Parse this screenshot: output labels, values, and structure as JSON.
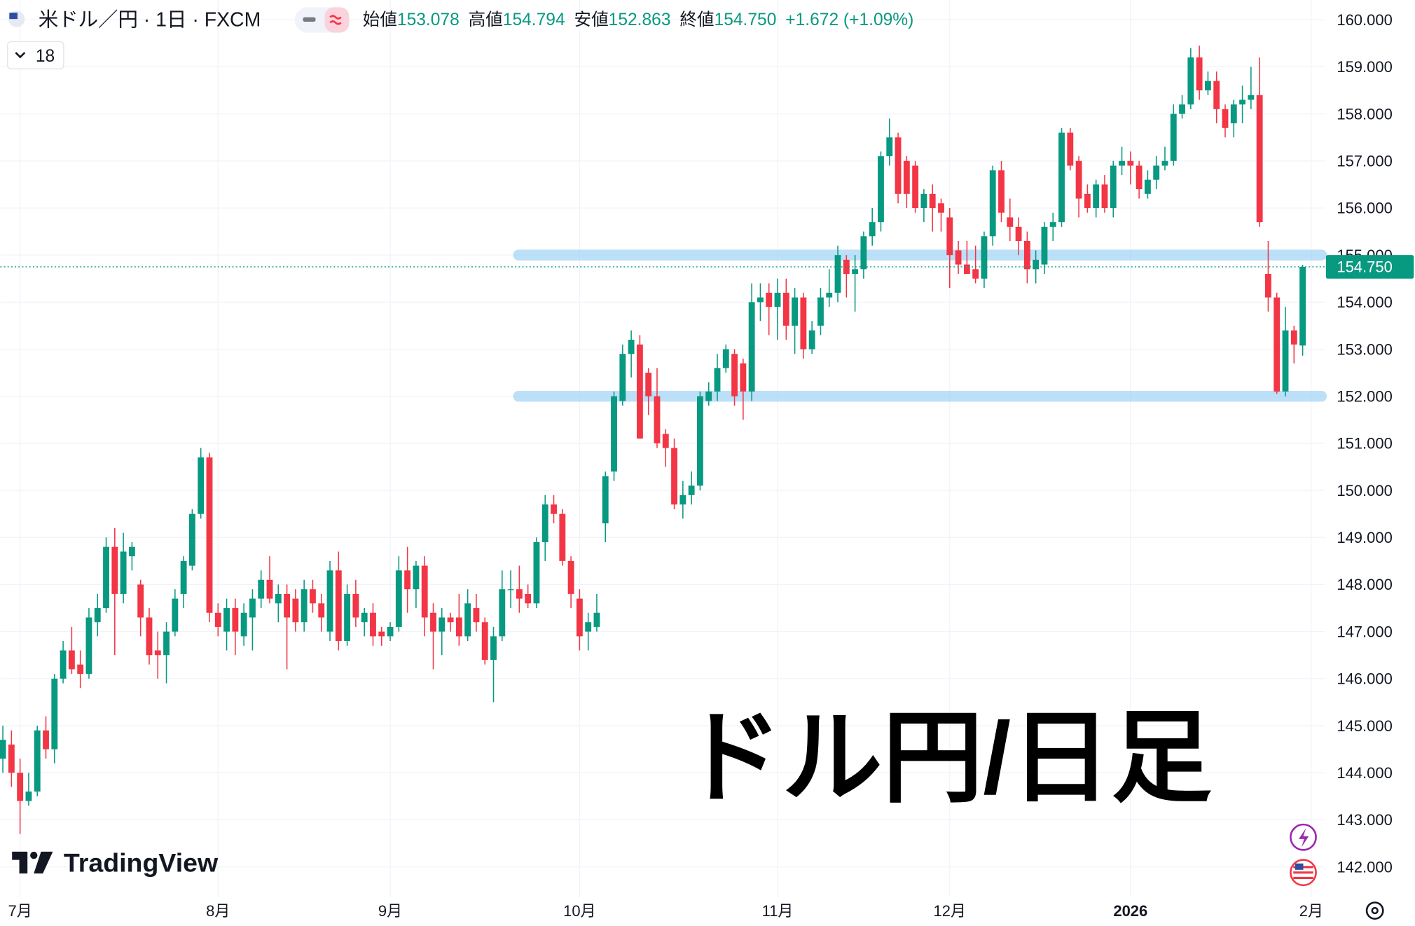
{
  "chart_data": {
    "type": "candlestick",
    "header": {
      "symbol": "米ドル／円 · 1日 · FXCM",
      "items": [
        {
          "label": "始値",
          "value": "153.078"
        },
        {
          "label": "高値",
          "value": "154.794"
        },
        {
          "label": "安値",
          "value": "152.863"
        },
        {
          "label": "終値",
          "value": "154.750"
        }
      ],
      "change": "+1.672 (+1.09%)"
    },
    "indicator_count": "18",
    "overlay_text": "ドル円/日足",
    "brand": "TradingView",
    "up_color": "#089981",
    "down_color": "#f23645",
    "xlim": [
      -0.3,
      153.6
    ],
    "xticks": [
      {
        "value": 2,
        "label": "7月"
      },
      {
        "value": 25,
        "label": "8月"
      },
      {
        "value": 45,
        "label": "9月"
      },
      {
        "value": 67,
        "label": "10月"
      },
      {
        "value": 90,
        "label": "11月"
      },
      {
        "value": 110,
        "label": "12月"
      },
      {
        "value": 131,
        "label": "2026"
      },
      {
        "value": 152,
        "label": "2月"
      }
    ],
    "ylim": [
      141.36,
      160.42
    ],
    "yticks": [
      {
        "value": 160,
        "label": "160.000"
      },
      {
        "value": 159,
        "label": "159.000"
      },
      {
        "value": 158,
        "label": "158.000"
      },
      {
        "value": 157,
        "label": "157.000"
      },
      {
        "value": 156,
        "label": "156.000"
      },
      {
        "value": 155,
        "label": "155.000"
      },
      {
        "value": 154,
        "label": "154.000"
      },
      {
        "value": 153,
        "label": "153.000"
      },
      {
        "value": 152,
        "label": "152.000"
      },
      {
        "value": 151,
        "label": "151.000"
      },
      {
        "value": 150,
        "label": "150.000"
      },
      {
        "value": 149,
        "label": "149.000"
      },
      {
        "value": 148,
        "label": "148.000"
      },
      {
        "value": 147,
        "label": "147.000"
      },
      {
        "value": 146,
        "label": "146.000"
      },
      {
        "value": 145,
        "label": "145.000"
      },
      {
        "value": 144,
        "label": "144.000"
      },
      {
        "value": 143,
        "label": "143.000"
      },
      {
        "value": 142,
        "label": "142.000"
      }
    ],
    "grid": true,
    "last_price": {
      "value": 154.75,
      "label": "154.750"
    },
    "hlines": [
      155,
      152
    ],
    "hline_color": "#90cdf4",
    "ohlc": [
      [
        144.3,
        145.0,
        144.0,
        144.7
      ],
      [
        144.6,
        144.9,
        143.7,
        144.0
      ],
      [
        144.0,
        144.3,
        142.7,
        143.4
      ],
      [
        143.4,
        144.0,
        143.3,
        143.6
      ],
      [
        143.6,
        145.0,
        143.5,
        144.9
      ],
      [
        144.9,
        145.2,
        144.3,
        144.5
      ],
      [
        144.5,
        146.1,
        144.2,
        146.0
      ],
      [
        146.0,
        146.8,
        145.9,
        146.6
      ],
      [
        146.6,
        147.1,
        146.1,
        146.2
      ],
      [
        146.3,
        146.6,
        145.8,
        146.1
      ],
      [
        146.1,
        147.5,
        146.0,
        147.3
      ],
      [
        147.2,
        147.8,
        146.9,
        147.5
      ],
      [
        147.5,
        149.0,
        147.4,
        148.8
      ],
      [
        148.8,
        149.2,
        146.5,
        147.8
      ],
      [
        147.8,
        149.1,
        147.6,
        148.7
      ],
      [
        148.6,
        148.9,
        148.3,
        148.8
      ],
      [
        148.0,
        148.1,
        146.9,
        147.3
      ],
      [
        147.3,
        147.5,
        146.3,
        146.5
      ],
      [
        146.6,
        147.0,
        146.0,
        146.5
      ],
      [
        146.5,
        147.2,
        145.9,
        147.0
      ],
      [
        147.0,
        147.9,
        146.9,
        147.7
      ],
      [
        147.8,
        148.6,
        147.5,
        148.5
      ],
      [
        148.4,
        149.6,
        148.3,
        149.5
      ],
      [
        149.5,
        150.9,
        149.4,
        150.7
      ],
      [
        150.7,
        150.8,
        147.2,
        147.4
      ],
      [
        147.4,
        147.6,
        146.9,
        147.1
      ],
      [
        147.0,
        147.7,
        146.6,
        147.5
      ],
      [
        147.5,
        147.7,
        146.5,
        147.0
      ],
      [
        146.9,
        147.6,
        146.7,
        147.4
      ],
      [
        147.3,
        147.9,
        146.6,
        147.7
      ],
      [
        147.7,
        148.3,
        147.5,
        148.1
      ],
      [
        148.1,
        148.6,
        147.6,
        147.7
      ],
      [
        147.6,
        148.0,
        147.2,
        147.8
      ],
      [
        147.8,
        148.0,
        146.2,
        147.3
      ],
      [
        147.7,
        147.9,
        147.0,
        147.2
      ],
      [
        147.2,
        148.1,
        147.0,
        147.9
      ],
      [
        147.9,
        148.1,
        147.4,
        147.6
      ],
      [
        147.6,
        147.8,
        147.0,
        147.3
      ],
      [
        147.0,
        148.5,
        146.8,
        148.3
      ],
      [
        148.3,
        148.7,
        146.6,
        146.8
      ],
      [
        146.8,
        148.0,
        146.7,
        147.8
      ],
      [
        147.8,
        148.1,
        147.1,
        147.3
      ],
      [
        147.2,
        147.5,
        146.9,
        147.4
      ],
      [
        147.4,
        147.6,
        146.7,
        146.9
      ],
      [
        147.0,
        147.1,
        146.7,
        146.9
      ],
      [
        146.9,
        147.2,
        146.8,
        147.1
      ],
      [
        147.1,
        148.6,
        147.0,
        148.3
      ],
      [
        148.3,
        148.8,
        147.4,
        147.9
      ],
      [
        147.9,
        148.5,
        147.5,
        148.4
      ],
      [
        148.4,
        148.6,
        146.9,
        147.3
      ],
      [
        147.4,
        147.6,
        146.2,
        147.0
      ],
      [
        147.0,
        147.5,
        146.5,
        147.3
      ],
      [
        147.3,
        147.4,
        147.0,
        147.2
      ],
      [
        147.3,
        147.8,
        146.7,
        146.9
      ],
      [
        146.9,
        147.9,
        146.8,
        147.6
      ],
      [
        147.5,
        147.8,
        147.0,
        147.2
      ],
      [
        147.2,
        147.3,
        146.3,
        146.4
      ],
      [
        146.4,
        147.1,
        145.5,
        146.9
      ],
      [
        146.9,
        148.3,
        146.8,
        147.9
      ],
      [
        147.9,
        148.3,
        147.5,
        147.9
      ],
      [
        147.9,
        148.4,
        147.4,
        147.7
      ],
      [
        147.8,
        148.0,
        147.5,
        147.6
      ],
      [
        147.6,
        149.0,
        147.5,
        148.9
      ],
      [
        148.9,
        149.9,
        148.5,
        149.7
      ],
      [
        149.7,
        149.9,
        149.3,
        149.5
      ],
      [
        149.5,
        149.6,
        148.4,
        148.5
      ],
      [
        148.5,
        148.6,
        147.5,
        147.8
      ],
      [
        147.7,
        147.9,
        146.6,
        146.9
      ],
      [
        147.0,
        147.4,
        146.6,
        147.2
      ],
      [
        147.1,
        147.8,
        147.0,
        147.4
      ],
      [
        149.3,
        150.4,
        148.9,
        150.3
      ],
      [
        150.4,
        152.1,
        150.2,
        152.0
      ],
      [
        151.9,
        153.1,
        151.8,
        152.9
      ],
      [
        152.9,
        153.4,
        152.4,
        153.2
      ],
      [
        153.1,
        153.3,
        151.1,
        151.1
      ],
      [
        152.5,
        152.6,
        151.6,
        152.0
      ],
      [
        152.0,
        152.6,
        150.9,
        151.0
      ],
      [
        151.2,
        151.3,
        150.5,
        150.9
      ],
      [
        150.9,
        151.1,
        149.6,
        149.7
      ],
      [
        149.7,
        150.2,
        149.4,
        149.9
      ],
      [
        149.9,
        150.4,
        149.7,
        150.1
      ],
      [
        150.1,
        152.1,
        150.0,
        152.0
      ],
      [
        151.9,
        152.3,
        151.8,
        152.1
      ],
      [
        152.1,
        152.9,
        151.9,
        152.6
      ],
      [
        152.6,
        153.1,
        152.5,
        153.0
      ],
      [
        152.9,
        153.0,
        151.8,
        152.0
      ],
      [
        152.7,
        152.8,
        151.5,
        152.1
      ],
      [
        152.1,
        154.4,
        151.9,
        154.0
      ],
      [
        154.0,
        154.4,
        153.6,
        154.1
      ],
      [
        154.2,
        154.4,
        153.3,
        153.9
      ],
      [
        153.9,
        154.5,
        153.2,
        154.2
      ],
      [
        154.2,
        154.5,
        153.2,
        153.5
      ],
      [
        153.5,
        154.3,
        152.9,
        154.1
      ],
      [
        154.1,
        154.2,
        152.8,
        153.0
      ],
      [
        153.0,
        153.6,
        152.9,
        153.4
      ],
      [
        153.5,
        154.3,
        153.3,
        154.1
      ],
      [
        154.1,
        154.7,
        153.9,
        154.2
      ],
      [
        154.2,
        155.2,
        154.0,
        155.0
      ],
      [
        154.9,
        155.0,
        154.1,
        154.6
      ],
      [
        154.6,
        155.0,
        153.8,
        154.7
      ],
      [
        154.7,
        155.5,
        154.5,
        155.4
      ],
      [
        155.4,
        156.0,
        155.2,
        155.7
      ],
      [
        155.7,
        157.2,
        155.5,
        157.1
      ],
      [
        157.1,
        157.9,
        156.9,
        157.5
      ],
      [
        157.5,
        157.6,
        156.1,
        156.3
      ],
      [
        157.0,
        157.1,
        156.0,
        156.3
      ],
      [
        156.9,
        157.0,
        155.9,
        156.0
      ],
      [
        156.0,
        156.4,
        155.7,
        156.3
      ],
      [
        156.3,
        156.5,
        155.5,
        156.0
      ],
      [
        156.1,
        156.2,
        155.5,
        155.9
      ],
      [
        155.8,
        156.0,
        154.3,
        155.0
      ],
      [
        155.1,
        155.3,
        154.6,
        154.8
      ],
      [
        154.8,
        155.3,
        154.6,
        154.6
      ],
      [
        154.7,
        155.2,
        154.4,
        154.5
      ],
      [
        154.5,
        155.5,
        154.3,
        155.4
      ],
      [
        155.4,
        156.9,
        155.2,
        156.8
      ],
      [
        156.8,
        157.0,
        155.7,
        155.9
      ],
      [
        155.8,
        156.2,
        155.3,
        155.6
      ],
      [
        155.6,
        155.8,
        155.0,
        155.3
      ],
      [
        155.3,
        155.5,
        154.4,
        154.7
      ],
      [
        154.7,
        155.1,
        154.4,
        154.9
      ],
      [
        154.8,
        155.7,
        154.6,
        155.6
      ],
      [
        155.6,
        155.9,
        155.3,
        155.7
      ],
      [
        155.7,
        157.7,
        155.6,
        157.6
      ],
      [
        157.6,
        157.7,
        156.8,
        156.9
      ],
      [
        157.0,
        157.1,
        155.8,
        156.2
      ],
      [
        156.3,
        156.5,
        155.9,
        156.0
      ],
      [
        156.0,
        156.6,
        155.8,
        156.5
      ],
      [
        156.5,
        156.7,
        155.9,
        156.0
      ],
      [
        156.0,
        157.0,
        155.8,
        156.9
      ],
      [
        156.9,
        157.3,
        156.7,
        157.0
      ],
      [
        157.0,
        157.2,
        156.5,
        156.9
      ],
      [
        156.9,
        157.0,
        156.2,
        156.4
      ],
      [
        156.3,
        156.8,
        156.2,
        156.6
      ],
      [
        156.6,
        157.1,
        156.4,
        156.9
      ],
      [
        156.9,
        157.3,
        156.8,
        157.0
      ],
      [
        157.0,
        158.2,
        156.9,
        158.0
      ],
      [
        158.0,
        158.4,
        157.9,
        158.2
      ],
      [
        158.2,
        159.4,
        158.1,
        159.2
      ],
      [
        159.2,
        159.45,
        158.3,
        158.5
      ],
      [
        158.5,
        158.9,
        158.4,
        158.7
      ],
      [
        158.7,
        158.9,
        157.8,
        158.1
      ],
      [
        158.1,
        158.2,
        157.5,
        157.7
      ],
      [
        157.8,
        158.3,
        157.5,
        158.2
      ],
      [
        158.2,
        158.6,
        157.8,
        158.3
      ],
      [
        158.3,
        159.0,
        158.1,
        158.4
      ],
      [
        158.4,
        159.2,
        155.6,
        155.7
      ],
      [
        154.6,
        155.3,
        153.8,
        154.1
      ],
      [
        154.1,
        154.2,
        152.05,
        152.1
      ],
      [
        152.1,
        153.9,
        152.0,
        153.4
      ],
      [
        153.4,
        153.5,
        152.7,
        153.1
      ],
      [
        153.078,
        154.794,
        152.863,
        154.75
      ]
    ]
  }
}
